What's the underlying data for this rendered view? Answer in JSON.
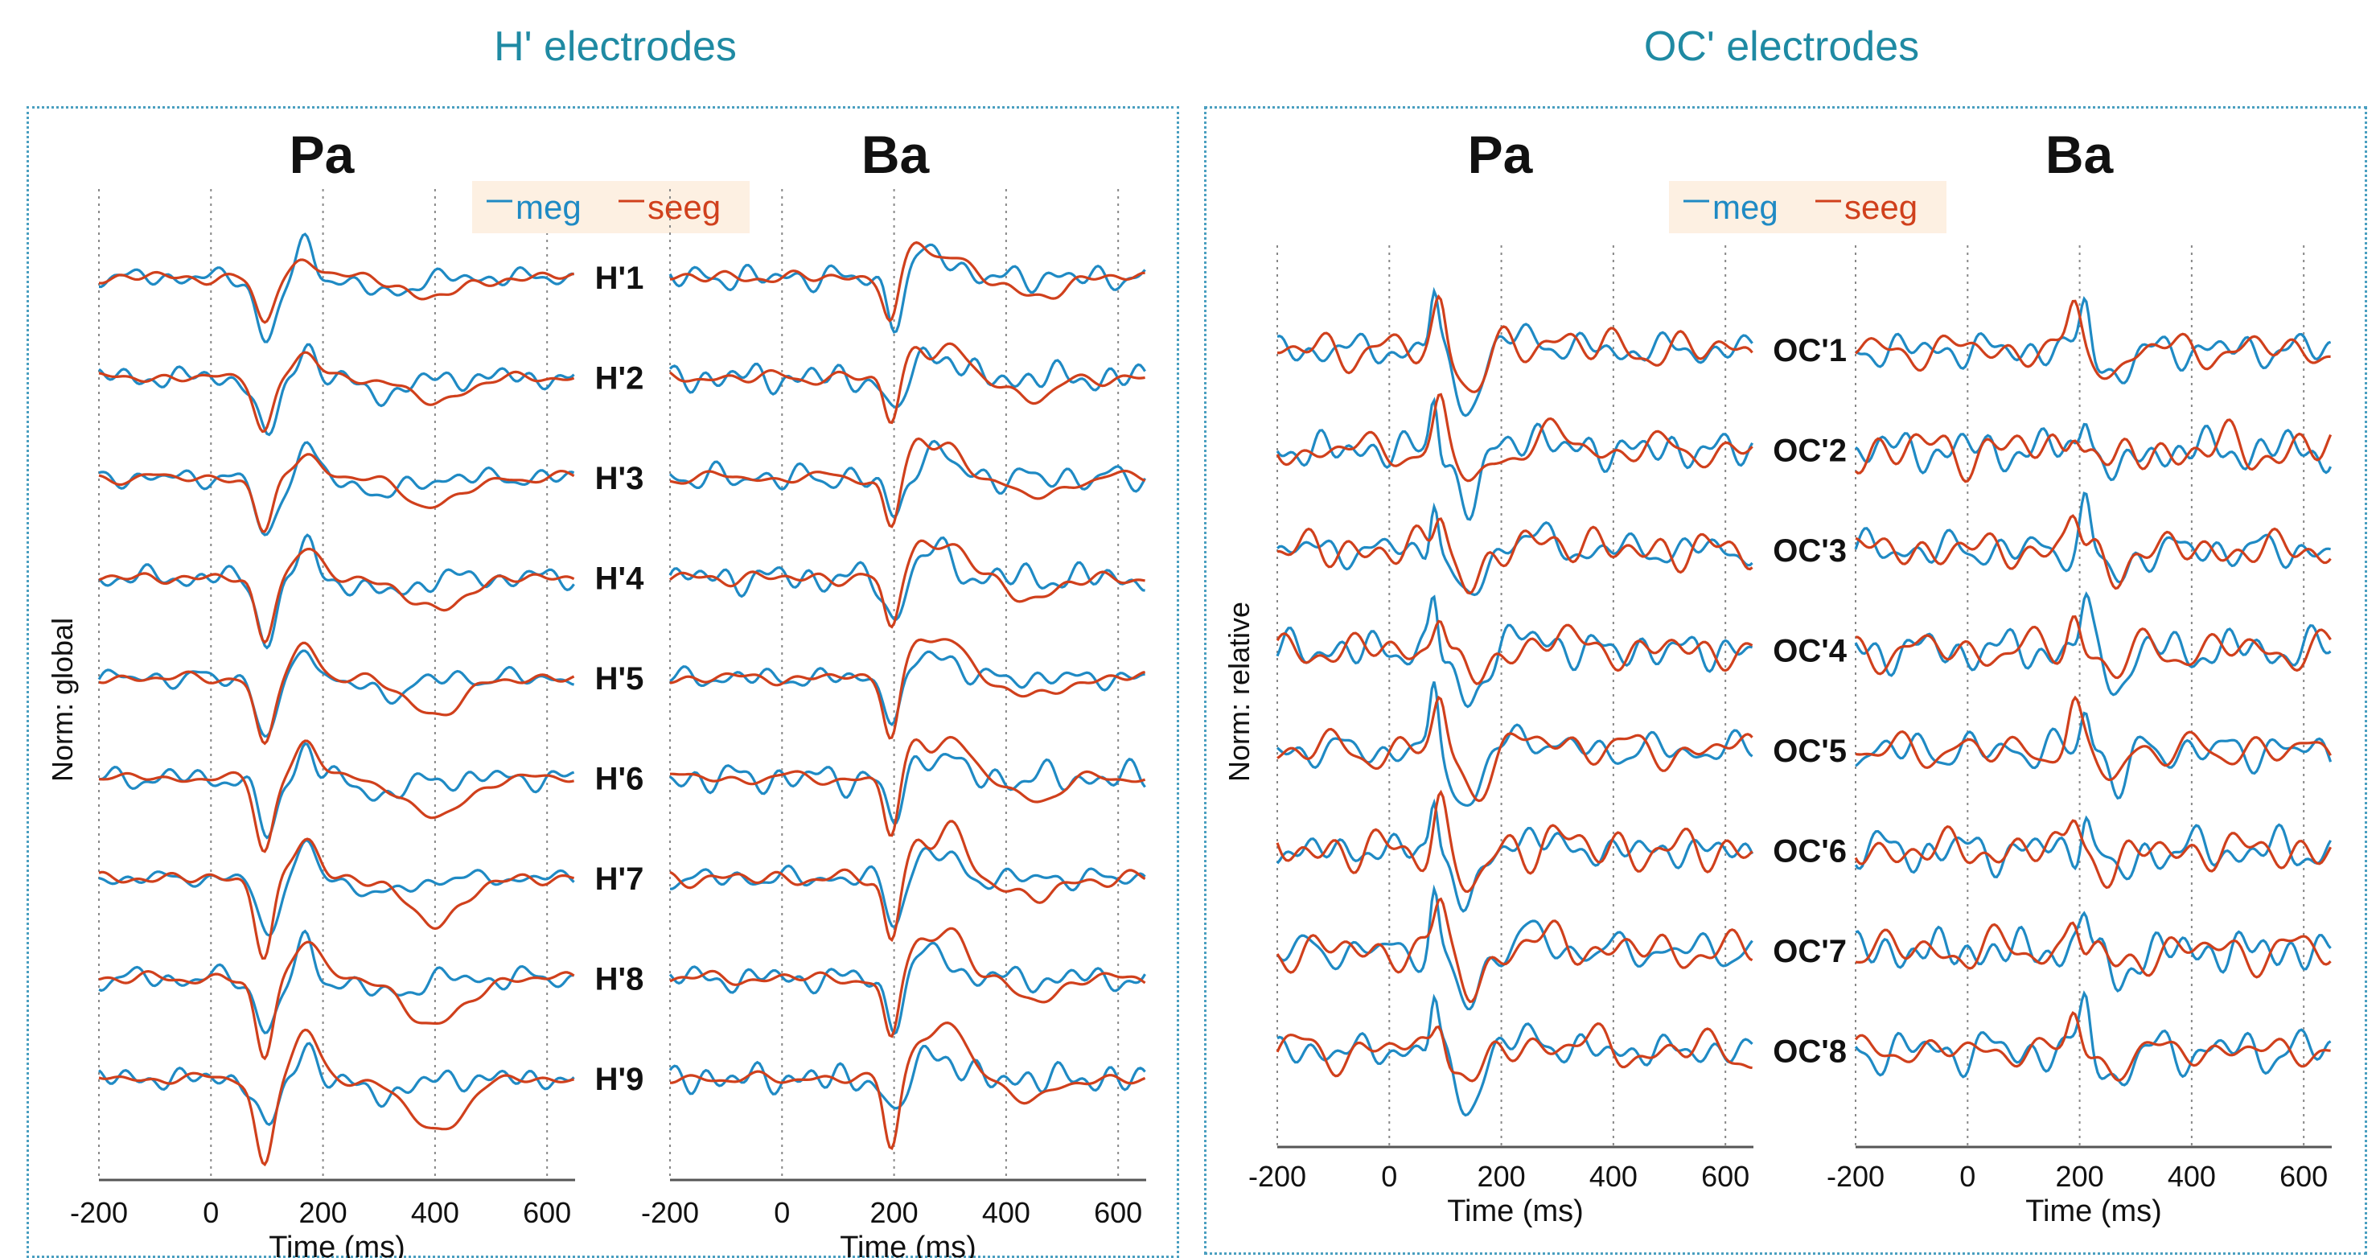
{
  "sections": [
    {
      "title": "H' electrodes",
      "ylabel": "Norm: global"
    },
    {
      "title": "OC' electrodes",
      "ylabel": "Norm: relative"
    }
  ],
  "legend": {
    "meg": "meg",
    "seeg": "seeg"
  },
  "colors": {
    "meg": "#1f8ac4",
    "seeg": "#d0401c",
    "title": "#1f8aa3",
    "legend_bg": "#fdf0e2"
  },
  "chart_data": [
    {
      "type": "line",
      "title": "Pa",
      "section": "H' electrodes",
      "xlabel": "Time (ms)",
      "ylabel": "Norm: global",
      "xlim": [
        -200,
        650
      ],
      "xticks": [
        -200,
        0,
        200,
        400,
        600
      ],
      "electrodes": [
        "H'1",
        "H'2",
        "H'3",
        "H'4",
        "H'5",
        "H'6",
        "H'7",
        "H'8",
        "H'9"
      ],
      "series": [
        "meg",
        "seeg"
      ],
      "grid": "vertical dotted at ticks",
      "legend": "top-right"
    },
    {
      "type": "line",
      "title": "Ba",
      "section": "H' electrodes",
      "xlabel": "Time (ms)",
      "xlim": [
        -200,
        650
      ],
      "xticks": [
        -200,
        0,
        200,
        400,
        600
      ],
      "electrodes": [
        "H'1",
        "H'2",
        "H'3",
        "H'4",
        "H'5",
        "H'6",
        "H'7",
        "H'8",
        "H'9"
      ],
      "series": [
        "meg",
        "seeg"
      ],
      "grid": "vertical dotted at ticks"
    },
    {
      "type": "line",
      "title": "Pa",
      "section": "OC' electrodes",
      "xlabel": "Time (ms)",
      "ylabel": "Norm: relative",
      "xlim": [
        -200,
        650
      ],
      "xticks": [
        -200,
        0,
        200,
        400,
        600
      ],
      "electrodes": [
        "OC'1",
        "OC'2",
        "OC'3",
        "OC'4",
        "OC'5",
        "OC'6",
        "OC'7",
        "OC'8"
      ],
      "series": [
        "meg",
        "seeg"
      ],
      "grid": "vertical dotted at ticks",
      "legend": "top-right"
    },
    {
      "type": "line",
      "title": "Ba",
      "section": "OC' electrodes",
      "xlabel": "Time (ms)",
      "xlim": [
        -200,
        650
      ],
      "xticks": [
        -200,
        0,
        200,
        400,
        600
      ],
      "electrodes": [
        "OC'1",
        "OC'2",
        "OC'3",
        "OC'4",
        "OC'5",
        "OC'6",
        "OC'7",
        "OC'8"
      ],
      "series": [
        "meg",
        "seeg"
      ],
      "grid": "vertical dotted at ticks"
    }
  ]
}
